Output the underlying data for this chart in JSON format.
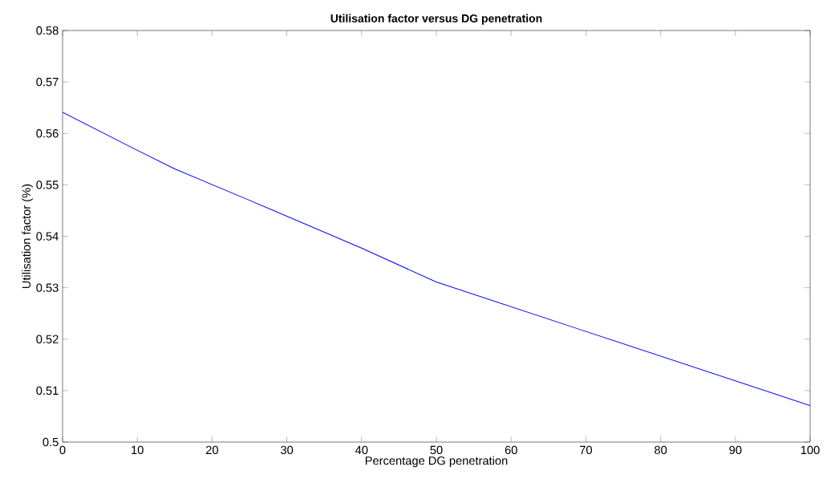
{
  "chart_data": {
    "type": "line",
    "title": "Utilisation factor versus DG penetration",
    "xlabel": "Percentage DG penetration",
    "ylabel": "Utilisation factor (%)",
    "x": [
      0,
      10,
      15,
      25,
      40,
      50,
      70,
      100
    ],
    "series": [
      {
        "color": "#0000ff",
        "values": [
          0.5641,
          0.5567,
          0.5531,
          0.547,
          0.5377,
          0.5311,
          0.5215,
          0.5071
        ]
      }
    ],
    "xlim": [
      0,
      100
    ],
    "ylim": [
      0.5,
      0.58
    ],
    "xticks": [
      0,
      10,
      20,
      30,
      40,
      50,
      60,
      70,
      80,
      90,
      100
    ],
    "yticks": [
      0.5,
      0.51,
      0.52,
      0.53,
      0.54,
      0.55,
      0.56,
      0.57,
      0.58
    ],
    "marker": "none",
    "line_style": "solid"
  }
}
